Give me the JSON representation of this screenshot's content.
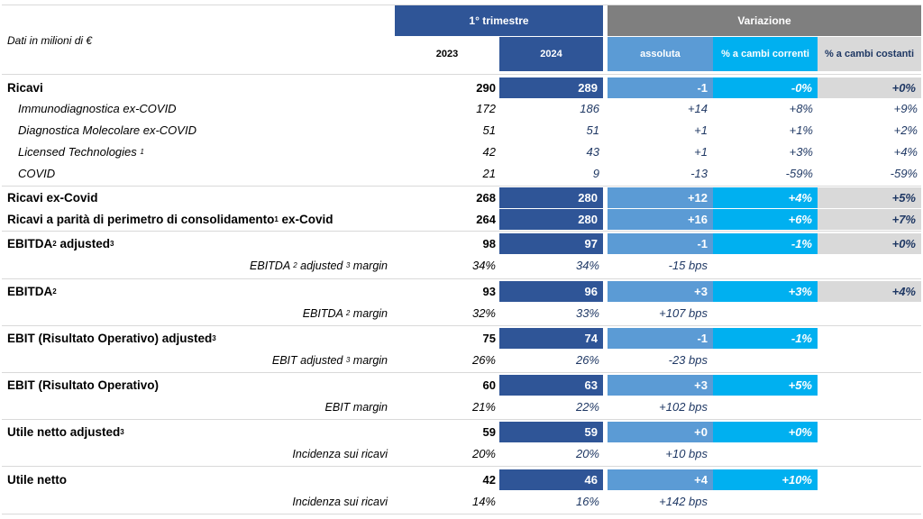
{
  "header": {
    "unit_label": "Dati in milioni di €",
    "quarter": "1° trimestre",
    "variation": "Variazione",
    "col_2023": "2023",
    "col_2024": "2024",
    "col_abs": "assoluta",
    "col_cur": "% a cambi correnti",
    "col_cost": "% a cambi costanti"
  },
  "rows": {
    "ricavi": {
      "label": "Ricavi",
      "v2023": "290",
      "v2024": "289",
      "abs": "-1",
      "cur": "-0%",
      "cost": "+0%"
    },
    "immuno": {
      "label": "Immunodiagnostica ex-COVID",
      "v2023": "172",
      "v2024": "186",
      "abs": "+14",
      "cur": "+8%",
      "cost": "+9%"
    },
    "diag": {
      "label": "Diagnostica Molecolare ex-COVID",
      "v2023": "51",
      "v2024": "51",
      "abs": "+1",
      "cur": "+1%",
      "cost": "+2%"
    },
    "licensed": {
      "label": "Licensed Technologies",
      "sup": "1",
      "v2023": "42",
      "v2024": "43",
      "abs": "+1",
      "cur": "+3%",
      "cost": "+4%"
    },
    "covid": {
      "label": "COVID",
      "v2023": "21",
      "v2024": "9",
      "abs": "-13",
      "cur": "-59%",
      "cost": "-59%"
    },
    "excovid": {
      "label": "Ricavi ex-Covid",
      "v2023": "268",
      "v2024": "280",
      "abs": "+12",
      "cur": "+4%",
      "cost": "+5%"
    },
    "parita": {
      "label_a": "Ricavi a parità di perimetro di consolidamento",
      "sup": "1",
      "label_b": " ex-Covid",
      "v2023": "264",
      "v2024": "280",
      "abs": "+16",
      "cur": "+6%",
      "cost": "+7%"
    },
    "ebitda_adj": {
      "label_a": "EBITDA",
      "sup1": "2",
      "label_b": " adjusted",
      "sup2": "3",
      "v2023": "98",
      "v2024": "97",
      "abs": "-1",
      "cur": "-1%",
      "cost": "+0%"
    },
    "ebitda_adj_margin": {
      "label_a": "EBITDA ",
      "sup1": "2",
      "label_b": " adjusted ",
      "sup2": "3",
      "label_c": " margin",
      "v2023": "34%",
      "v2024": "34%",
      "abs": "-15 bps"
    },
    "ebitda": {
      "label_a": "EBITDA",
      "sup": "2",
      "v2023": "93",
      "v2024": "96",
      "abs": "+3",
      "cur": "+3%",
      "cost": "+4%"
    },
    "ebitda_margin": {
      "label_a": "EBITDA ",
      "sup": "2",
      "label_b": " margin",
      "v2023": "32%",
      "v2024": "33%",
      "abs": "+107 bps"
    },
    "ebit_adj": {
      "label_a": "EBIT (Risultato Operativo) adjusted",
      "sup": "3",
      "v2023": "75",
      "v2024": "74",
      "abs": "-1",
      "cur": "-1%"
    },
    "ebit_adj_margin": {
      "label_a": "EBIT adjusted ",
      "sup": "3",
      "label_b": " margin",
      "v2023": "26%",
      "v2024": "26%",
      "abs": "-23 bps"
    },
    "ebit": {
      "label": "EBIT (Risultato Operativo)",
      "v2023": "60",
      "v2024": "63",
      "abs": "+3",
      "cur": "+5%"
    },
    "ebit_margin": {
      "label": "EBIT margin",
      "v2023": "21%",
      "v2024": "22%",
      "abs": "+102 bps"
    },
    "utile_adj": {
      "label_a": "Utile netto adjusted",
      "sup": "3",
      "v2023": "59",
      "v2024": "59",
      "abs": "+0",
      "cur": "+0%"
    },
    "utile_adj_inc": {
      "label": "Incidenza sui ricavi",
      "v2023": "20%",
      "v2024": "20%",
      "abs": "+10 bps"
    },
    "utile": {
      "label": "Utile netto",
      "v2023": "42",
      "v2024": "46",
      "abs": "+4",
      "cur": "+10%"
    },
    "utile_inc": {
      "label": "Incidenza sui ricavi",
      "v2023": "14%",
      "v2024": "16%",
      "abs": "+142 bps"
    }
  },
  "colors": {
    "dark_blue": "#2f5597",
    "mid_blue": "#5b9bd5",
    "cyan": "#00b0f0",
    "grey": "#7f7f7f",
    "light_grey": "#d9d9d9"
  }
}
